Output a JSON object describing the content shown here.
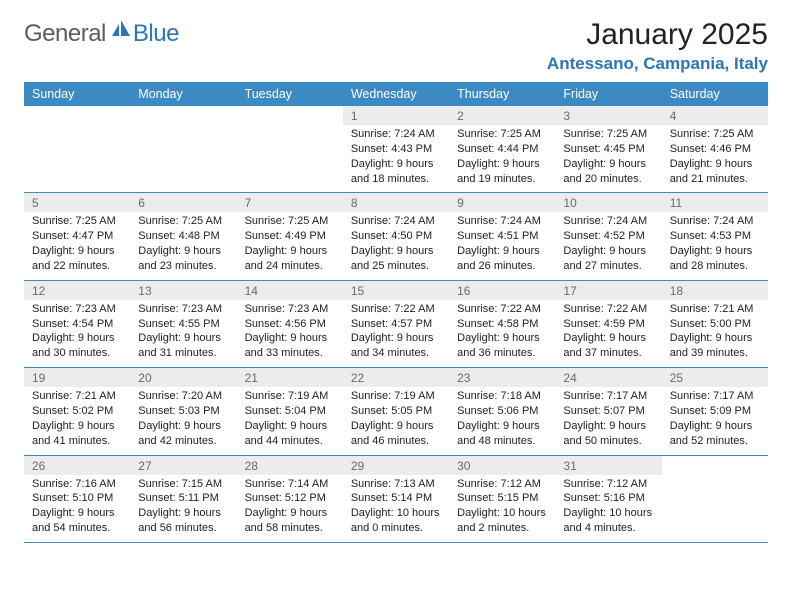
{
  "logo": {
    "general": "General",
    "blue": "Blue"
  },
  "title": "January 2025",
  "location": "Antessano, Campania, Italy",
  "colors": {
    "header_bg": "#3b8ac4",
    "header_text": "#ffffff",
    "daynum_bg": "#ececec",
    "daynum_text": "#6b6b6b",
    "rule": "#3b8ac4",
    "brand": "#2e75b6",
    "body_text": "#222222"
  },
  "daysOfWeek": [
    "Sunday",
    "Monday",
    "Tuesday",
    "Wednesday",
    "Thursday",
    "Friday",
    "Saturday"
  ],
  "weeks": [
    [
      {
        "n": "",
        "sr": "",
        "ss": "",
        "dl": ""
      },
      {
        "n": "",
        "sr": "",
        "ss": "",
        "dl": ""
      },
      {
        "n": "",
        "sr": "",
        "ss": "",
        "dl": ""
      },
      {
        "n": "1",
        "sr": "Sunrise: 7:24 AM",
        "ss": "Sunset: 4:43 PM",
        "dl": "Daylight: 9 hours and 18 minutes."
      },
      {
        "n": "2",
        "sr": "Sunrise: 7:25 AM",
        "ss": "Sunset: 4:44 PM",
        "dl": "Daylight: 9 hours and 19 minutes."
      },
      {
        "n": "3",
        "sr": "Sunrise: 7:25 AM",
        "ss": "Sunset: 4:45 PM",
        "dl": "Daylight: 9 hours and 20 minutes."
      },
      {
        "n": "4",
        "sr": "Sunrise: 7:25 AM",
        "ss": "Sunset: 4:46 PM",
        "dl": "Daylight: 9 hours and 21 minutes."
      }
    ],
    [
      {
        "n": "5",
        "sr": "Sunrise: 7:25 AM",
        "ss": "Sunset: 4:47 PM",
        "dl": "Daylight: 9 hours and 22 minutes."
      },
      {
        "n": "6",
        "sr": "Sunrise: 7:25 AM",
        "ss": "Sunset: 4:48 PM",
        "dl": "Daylight: 9 hours and 23 minutes."
      },
      {
        "n": "7",
        "sr": "Sunrise: 7:25 AM",
        "ss": "Sunset: 4:49 PM",
        "dl": "Daylight: 9 hours and 24 minutes."
      },
      {
        "n": "8",
        "sr": "Sunrise: 7:24 AM",
        "ss": "Sunset: 4:50 PM",
        "dl": "Daylight: 9 hours and 25 minutes."
      },
      {
        "n": "9",
        "sr": "Sunrise: 7:24 AM",
        "ss": "Sunset: 4:51 PM",
        "dl": "Daylight: 9 hours and 26 minutes."
      },
      {
        "n": "10",
        "sr": "Sunrise: 7:24 AM",
        "ss": "Sunset: 4:52 PM",
        "dl": "Daylight: 9 hours and 27 minutes."
      },
      {
        "n": "11",
        "sr": "Sunrise: 7:24 AM",
        "ss": "Sunset: 4:53 PM",
        "dl": "Daylight: 9 hours and 28 minutes."
      }
    ],
    [
      {
        "n": "12",
        "sr": "Sunrise: 7:23 AM",
        "ss": "Sunset: 4:54 PM",
        "dl": "Daylight: 9 hours and 30 minutes."
      },
      {
        "n": "13",
        "sr": "Sunrise: 7:23 AM",
        "ss": "Sunset: 4:55 PM",
        "dl": "Daylight: 9 hours and 31 minutes."
      },
      {
        "n": "14",
        "sr": "Sunrise: 7:23 AM",
        "ss": "Sunset: 4:56 PM",
        "dl": "Daylight: 9 hours and 33 minutes."
      },
      {
        "n": "15",
        "sr": "Sunrise: 7:22 AM",
        "ss": "Sunset: 4:57 PM",
        "dl": "Daylight: 9 hours and 34 minutes."
      },
      {
        "n": "16",
        "sr": "Sunrise: 7:22 AM",
        "ss": "Sunset: 4:58 PM",
        "dl": "Daylight: 9 hours and 36 minutes."
      },
      {
        "n": "17",
        "sr": "Sunrise: 7:22 AM",
        "ss": "Sunset: 4:59 PM",
        "dl": "Daylight: 9 hours and 37 minutes."
      },
      {
        "n": "18",
        "sr": "Sunrise: 7:21 AM",
        "ss": "Sunset: 5:00 PM",
        "dl": "Daylight: 9 hours and 39 minutes."
      }
    ],
    [
      {
        "n": "19",
        "sr": "Sunrise: 7:21 AM",
        "ss": "Sunset: 5:02 PM",
        "dl": "Daylight: 9 hours and 41 minutes."
      },
      {
        "n": "20",
        "sr": "Sunrise: 7:20 AM",
        "ss": "Sunset: 5:03 PM",
        "dl": "Daylight: 9 hours and 42 minutes."
      },
      {
        "n": "21",
        "sr": "Sunrise: 7:19 AM",
        "ss": "Sunset: 5:04 PM",
        "dl": "Daylight: 9 hours and 44 minutes."
      },
      {
        "n": "22",
        "sr": "Sunrise: 7:19 AM",
        "ss": "Sunset: 5:05 PM",
        "dl": "Daylight: 9 hours and 46 minutes."
      },
      {
        "n": "23",
        "sr": "Sunrise: 7:18 AM",
        "ss": "Sunset: 5:06 PM",
        "dl": "Daylight: 9 hours and 48 minutes."
      },
      {
        "n": "24",
        "sr": "Sunrise: 7:17 AM",
        "ss": "Sunset: 5:07 PM",
        "dl": "Daylight: 9 hours and 50 minutes."
      },
      {
        "n": "25",
        "sr": "Sunrise: 7:17 AM",
        "ss": "Sunset: 5:09 PM",
        "dl": "Daylight: 9 hours and 52 minutes."
      }
    ],
    [
      {
        "n": "26",
        "sr": "Sunrise: 7:16 AM",
        "ss": "Sunset: 5:10 PM",
        "dl": "Daylight: 9 hours and 54 minutes."
      },
      {
        "n": "27",
        "sr": "Sunrise: 7:15 AM",
        "ss": "Sunset: 5:11 PM",
        "dl": "Daylight: 9 hours and 56 minutes."
      },
      {
        "n": "28",
        "sr": "Sunrise: 7:14 AM",
        "ss": "Sunset: 5:12 PM",
        "dl": "Daylight: 9 hours and 58 minutes."
      },
      {
        "n": "29",
        "sr": "Sunrise: 7:13 AM",
        "ss": "Sunset: 5:14 PM",
        "dl": "Daylight: 10 hours and 0 minutes."
      },
      {
        "n": "30",
        "sr": "Sunrise: 7:12 AM",
        "ss": "Sunset: 5:15 PM",
        "dl": "Daylight: 10 hours and 2 minutes."
      },
      {
        "n": "31",
        "sr": "Sunrise: 7:12 AM",
        "ss": "Sunset: 5:16 PM",
        "dl": "Daylight: 10 hours and 4 minutes."
      },
      {
        "n": "",
        "sr": "",
        "ss": "",
        "dl": ""
      }
    ]
  ]
}
